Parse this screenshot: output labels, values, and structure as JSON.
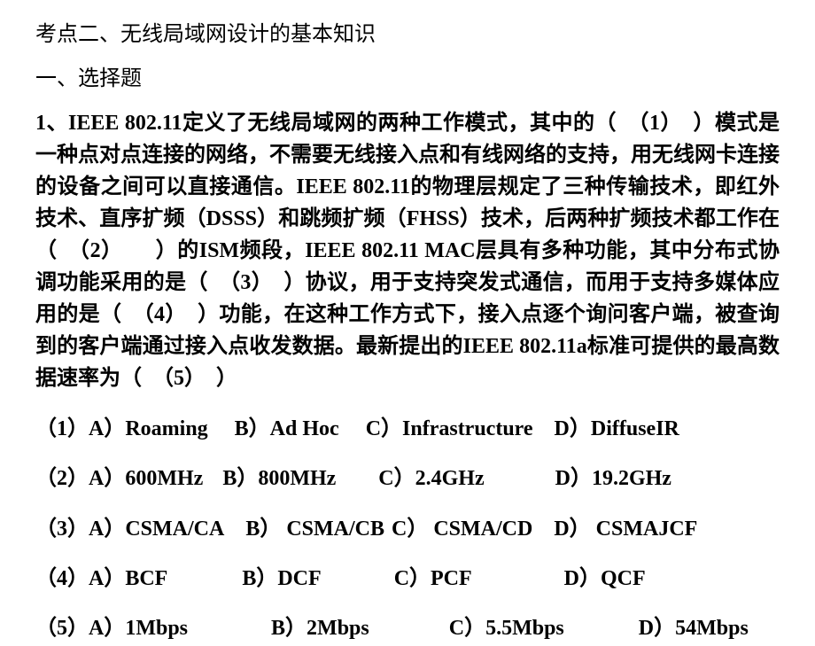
{
  "colors": {
    "background": "#ffffff",
    "text": "#000000"
  },
  "typography": {
    "body_fontsize": 24,
    "body_fontweight": "bold",
    "title_fontsize": 24,
    "line_height": 1.5
  },
  "document": {
    "section_title": "考点二、无线局域网设计的基本知识",
    "sub_section_title": "一、选择题",
    "question_text": "1、IEEE 802.11定义了无线局域网的两种工作模式，其中的（　（1）　）模式是一种点对点连接的网络，不需要无线接入点和有线网络的支持，用无线网卡连接的设备之间可以直接通信。IEEE 802.11的物理层规定了三种传输技术，即红外技术、直序扩频（DSSS）和跳频扩频（FHSS）技术，后两种扩频技术都工作在（　（2）　　）的ISM频段，IEEE 802.11 MAC层具有多种功能，其中分布式协调功能采用的是（　（3）　）协议，用于支持突发式通信，而用于支持多媒体应用的是（　（4）　）功能，在这种工作方式下，接入点逐个询问客户端，被查询到的客户端通过接入点收发数据。最新提出的IEEE 802.11a标准可提供的最高数据速率为（　（5）　）",
    "options": [
      {
        "label": "（1）",
        "items": [
          {
            "key": "A）",
            "text": "Roaming",
            "gap": 30
          },
          {
            "key": "B）",
            "text": "Ad Hoc",
            "gap": 30
          },
          {
            "key": "C）",
            "text": "Infrastructure",
            "gap": 24
          },
          {
            "key": "D）",
            "text": "DiffuseIR",
            "gap": 0
          }
        ]
      },
      {
        "label": "（2）",
        "items": [
          {
            "key": "A）",
            "text": "600MHz",
            "gap": 22
          },
          {
            "key": "B）",
            "text": "800MHz",
            "gap": 48
          },
          {
            "key": "C）",
            "text": "2.4GHz",
            "gap": 80
          },
          {
            "key": "D）",
            "text": "19.2GHz",
            "gap": 0
          }
        ]
      },
      {
        "label": "（3）",
        "items": [
          {
            "key": "A）",
            "text": "CSMA/CA",
            "gap": 24
          },
          {
            "key": "B）",
            "text": " CSMA/CB",
            "gap": 8
          },
          {
            "key": "C）",
            "text": "   CSMA/CD",
            "gap": 24
          },
          {
            "key": "D）",
            "text": " CSMAJCF",
            "gap": 0
          }
        ]
      },
      {
        "label": "（4）",
        "items": [
          {
            "key": "A）",
            "text": "BCF",
            "gap": 84
          },
          {
            "key": "B）",
            "text": "DCF",
            "gap": 82
          },
          {
            "key": "C）",
            "text": "PCF",
            "gap": 104
          },
          {
            "key": "D）",
            "text": "QCF",
            "gap": 0
          }
        ]
      },
      {
        "label": "（5）",
        "items": [
          {
            "key": "A）",
            "text": "1Mbps",
            "gap": 94
          },
          {
            "key": "B）",
            "text": "2Mbps",
            "gap": 90
          },
          {
            "key": "C）",
            "text": "5.5Mbps",
            "gap": 84
          },
          {
            "key": "D）",
            "text": "54Mbps",
            "gap": 0
          }
        ]
      }
    ]
  }
}
